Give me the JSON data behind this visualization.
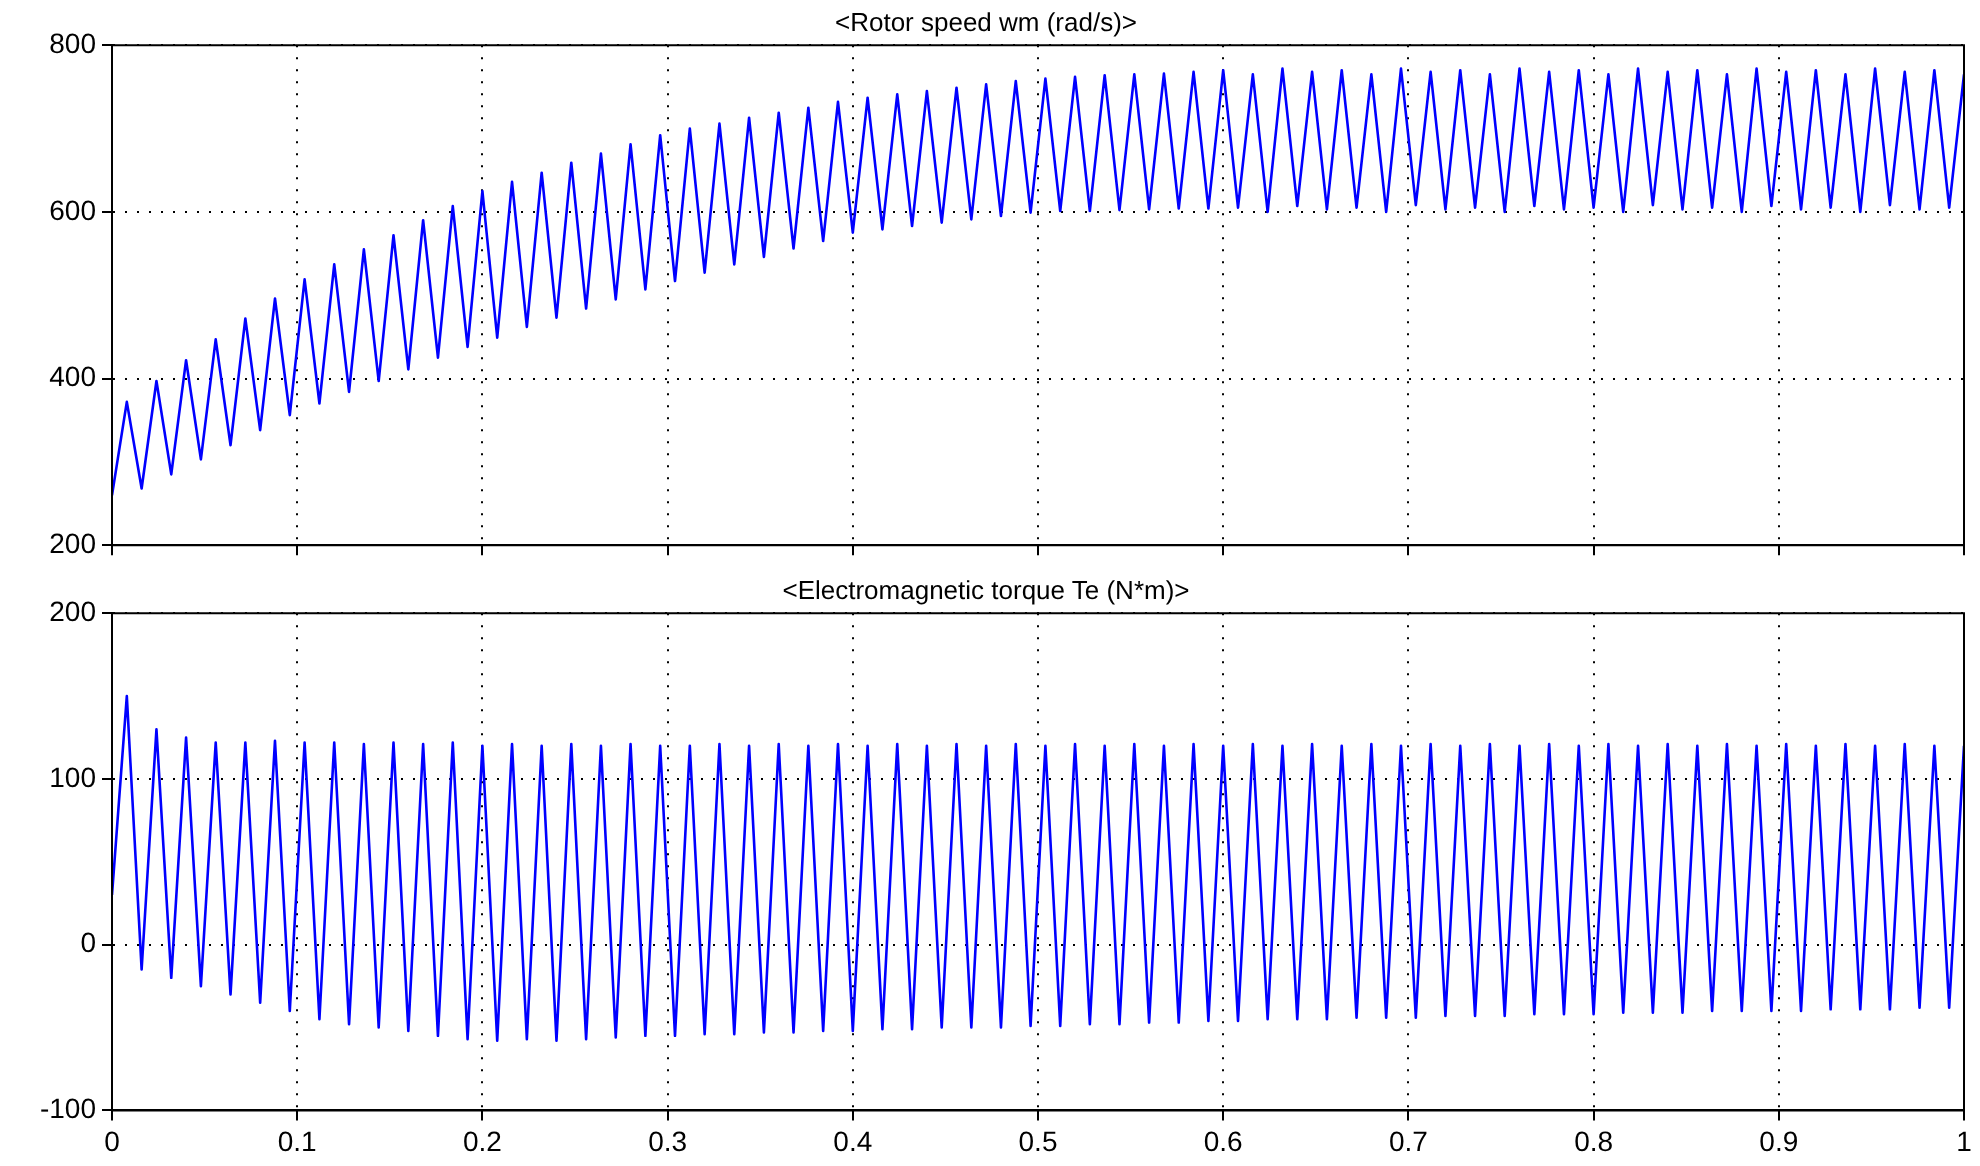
{
  "chart_data": [
    {
      "type": "line",
      "title": "<Rotor speed wm (rad/s)>",
      "x": [
        0,
        0.008,
        0.016,
        0.024,
        0.032,
        0.04,
        0.048,
        0.056,
        0.064,
        0.072,
        0.08,
        0.088,
        0.096,
        0.104,
        0.112,
        0.12,
        0.128,
        0.136,
        0.144,
        0.152,
        0.16,
        0.168,
        0.176,
        0.184,
        0.192,
        0.2,
        0.208,
        0.216,
        0.224,
        0.232,
        0.24,
        0.248,
        0.256,
        0.264,
        0.272,
        0.28,
        0.288,
        0.296,
        0.304,
        0.312,
        0.32,
        0.328,
        0.336,
        0.344,
        0.352,
        0.36,
        0.368,
        0.376,
        0.384,
        0.392,
        0.4,
        0.408,
        0.416,
        0.424,
        0.432,
        0.44,
        0.448,
        0.456,
        0.464,
        0.472,
        0.48,
        0.488,
        0.496,
        0.504,
        0.512,
        0.52,
        0.528,
        0.536,
        0.544,
        0.552,
        0.56,
        0.568,
        0.576,
        0.584,
        0.592,
        0.6,
        0.608,
        0.616,
        0.624,
        0.632,
        0.64,
        0.648,
        0.656,
        0.664,
        0.672,
        0.68,
        0.688,
        0.696,
        0.704,
        0.712,
        0.72,
        0.728,
        0.736,
        0.744,
        0.752,
        0.76,
        0.768,
        0.776,
        0.784,
        0.792,
        0.8,
        0.808,
        0.816,
        0.824,
        0.832,
        0.84,
        0.848,
        0.856,
        0.864,
        0.872,
        0.88,
        0.888,
        0.896,
        0.904,
        0.912,
        0.92,
        0.928,
        0.936,
        0.944,
        0.952,
        0.96,
        0.968,
        0.976,
        0.984,
        0.992,
        1.0
      ],
      "series": [
        {
          "color": "#0000ff",
          "values": [
            260,
            372,
            268,
            397,
            285,
            422,
            303,
            447,
            320,
            472,
            338,
            496,
            356,
            519,
            370,
            537,
            384,
            555,
            397,
            572,
            411,
            590,
            425,
            607,
            438,
            625,
            449,
            636,
            462,
            647,
            473,
            659,
            484,
            670,
            495,
            681,
            507,
            692,
            517,
            700,
            527,
            706,
            537,
            713,
            546,
            719,
            556,
            725,
            565,
            732,
            575,
            737,
            579,
            741,
            583,
            745,
            587,
            749,
            591,
            753,
            595,
            757,
            599,
            760,
            601,
            762,
            601,
            764,
            602,
            765,
            603,
            766,
            604,
            768,
            604,
            770,
            605,
            765,
            600,
            772,
            607,
            768,
            603,
            770,
            605,
            765,
            600,
            772,
            608,
            768,
            603,
            770,
            605,
            765,
            600,
            772,
            607,
            768,
            603,
            770,
            605,
            765,
            600,
            772,
            608,
            768,
            603,
            770,
            605,
            765,
            600,
            772,
            607,
            768,
            603,
            770,
            605,
            765,
            600,
            772,
            608,
            768,
            603,
            770,
            605,
            765
          ]
        }
      ],
      "xlim": [
        0,
        1
      ],
      "xticks": [
        0,
        0.1,
        0.2,
        0.3,
        0.4,
        0.5,
        0.6,
        0.7,
        0.8,
        0.9,
        1
      ],
      "ylim": [
        200,
        800
      ],
      "yticks": [
        200,
        400,
        600,
        800
      ],
      "grid": true,
      "legend": false,
      "tick_labels": "y",
      "line_style": "solid",
      "marker": "none"
    },
    {
      "type": "line",
      "title": "<Electromagnetic torque Te (N*m)>",
      "x": [
        0,
        0.008,
        0.016,
        0.024,
        0.032,
        0.04,
        0.048,
        0.056,
        0.064,
        0.072,
        0.08,
        0.088,
        0.096,
        0.104,
        0.112,
        0.12,
        0.128,
        0.136,
        0.144,
        0.152,
        0.16,
        0.168,
        0.176,
        0.184,
        0.192,
        0.2,
        0.208,
        0.216,
        0.224,
        0.232,
        0.24,
        0.248,
        0.256,
        0.264,
        0.272,
        0.28,
        0.288,
        0.296,
        0.304,
        0.312,
        0.32,
        0.328,
        0.336,
        0.344,
        0.352,
        0.36,
        0.368,
        0.376,
        0.384,
        0.392,
        0.4,
        0.408,
        0.416,
        0.424,
        0.432,
        0.44,
        0.448,
        0.456,
        0.464,
        0.472,
        0.48,
        0.488,
        0.496,
        0.504,
        0.512,
        0.52,
        0.528,
        0.536,
        0.544,
        0.552,
        0.56,
        0.568,
        0.576,
        0.584,
        0.592,
        0.6,
        0.608,
        0.616,
        0.624,
        0.632,
        0.64,
        0.648,
        0.656,
        0.664,
        0.672,
        0.68,
        0.688,
        0.696,
        0.704,
        0.712,
        0.72,
        0.728,
        0.736,
        0.744,
        0.752,
        0.76,
        0.768,
        0.776,
        0.784,
        0.792,
        0.8,
        0.808,
        0.816,
        0.824,
        0.832,
        0.84,
        0.848,
        0.856,
        0.864,
        0.872,
        0.88,
        0.888,
        0.896,
        0.904,
        0.912,
        0.92,
        0.928,
        0.936,
        0.944,
        0.952,
        0.96,
        0.968,
        0.976,
        0.984,
        0.992,
        1.0
      ],
      "series": [
        {
          "color": "#0000ff",
          "values": [
            30,
            150,
            -15,
            130,
            -20,
            125,
            -25,
            122,
            -30,
            122,
            -35,
            123,
            -40,
            122,
            -45,
            122,
            -48,
            121,
            -50,
            122,
            -52,
            121,
            -55,
            122,
            -57,
            120,
            -58,
            121,
            -57,
            120,
            -58,
            121,
            -57,
            120,
            -56,
            121,
            -55,
            120,
            -55,
            120,
            -54,
            121,
            -54,
            120,
            -53,
            121,
            -53,
            120,
            -52,
            121,
            -52,
            120,
            -51,
            121,
            -51,
            120,
            -50,
            121,
            -50,
            120,
            -50,
            121,
            -49,
            120,
            -49,
            121,
            -48,
            120,
            -48,
            121,
            -47,
            120,
            -47,
            121,
            -46,
            120,
            -46,
            121,
            -45,
            120,
            -45,
            121,
            -45,
            120,
            -44,
            121,
            -44,
            120,
            -44,
            121,
            -43,
            120,
            -43,
            121,
            -43,
            120,
            -42,
            121,
            -42,
            120,
            -42,
            121,
            -41,
            120,
            -41,
            121,
            -41,
            120,
            -40,
            121,
            -40,
            120,
            -40,
            121,
            -40,
            120,
            -39,
            121,
            -39,
            120,
            -39,
            121,
            -38,
            120,
            -38,
            120
          ]
        }
      ],
      "xlim": [
        0,
        1
      ],
      "xticks": [
        0,
        0.1,
        0.2,
        0.3,
        0.4,
        0.5,
        0.6,
        0.7,
        0.8,
        0.9,
        1
      ],
      "ylim": [
        -100,
        200
      ],
      "yticks": [
        -100,
        0,
        100,
        200
      ],
      "grid": true,
      "legend": false,
      "line_style": "solid",
      "marker": "none"
    }
  ]
}
